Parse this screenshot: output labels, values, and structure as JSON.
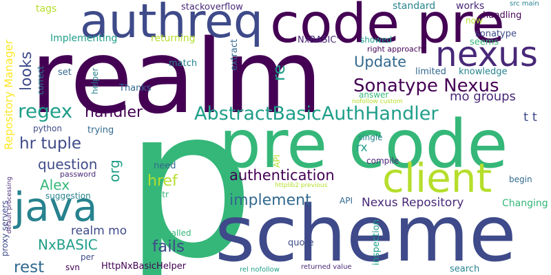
{
  "palette": {
    "background": "#ffffff",
    "dark_purple": "#440154",
    "purple": "#482878",
    "indigo": "#3e4a89",
    "blue": "#31688e",
    "teal": "#26828e",
    "teal_green": "#1f9e89",
    "green": "#35b779",
    "light_green": "#6ece58",
    "yellow_green": "#b5de2b",
    "yellow": "#fde725"
  },
  "words": [
    {
      "id": "p",
      "text": "p"
    },
    {
      "id": "realm",
      "text": "realm"
    },
    {
      "id": "scheme",
      "text": "scheme"
    },
    {
      "id": "pre-code-large",
      "text": "pre code"
    },
    {
      "id": "code-pre",
      "text": "code pre"
    },
    {
      "id": "authreq",
      "text": "authreq"
    },
    {
      "id": "nexus",
      "text": "nexus"
    },
    {
      "id": "client",
      "text": "client"
    },
    {
      "id": "java",
      "text": "java"
    },
    {
      "id": "abstract-basic-auth-handler",
      "text": "AbstractBasicAuthHandler"
    },
    {
      "id": "sonatype-nexus",
      "text": "Sonatype Nexus"
    },
    {
      "id": "regex",
      "text": "regex"
    },
    {
      "id": "authentication",
      "text": "authentication"
    },
    {
      "id": "implement",
      "text": "implement"
    },
    {
      "id": "nexus-repository",
      "text": "Nexus Repository"
    },
    {
      "id": "update",
      "text": "Update"
    },
    {
      "id": "mo-groups",
      "text": "mo groups"
    },
    {
      "id": "handler",
      "text": "handler"
    },
    {
      "id": "hr-tuple",
      "text": "hr tuple"
    },
    {
      "id": "question",
      "text": "question"
    },
    {
      "id": "alex",
      "text": "Alex"
    },
    {
      "id": "nxbasic",
      "text": "NxBASIC"
    },
    {
      "id": "rest",
      "text": "rest"
    },
    {
      "id": "realm-mo",
      "text": "realm mo"
    },
    {
      "id": "fails",
      "text": "fails"
    },
    {
      "id": "href",
      "text": "href"
    },
    {
      "id": "org",
      "text": "org"
    },
    {
      "id": "looks",
      "text": "looks"
    },
    {
      "id": "re",
      "text": "re"
    },
    {
      "id": "rx",
      "text": "rx"
    },
    {
      "id": "repository-manager",
      "text": "Repository Manager"
    },
    {
      "id": "t-t",
      "text": "t t"
    },
    {
      "id": "changing",
      "text": "Changing"
    },
    {
      "id": "tags",
      "text": "tags"
    },
    {
      "id": "stackoverflow",
      "text": "stackoverflow"
    },
    {
      "id": "standard",
      "text": "standard"
    },
    {
      "id": "works",
      "text": "works"
    },
    {
      "id": "src-main",
      "text": "src main"
    },
    {
      "id": "handling",
      "text": "handling"
    },
    {
      "id": "now",
      "text": "now"
    },
    {
      "id": "implementing",
      "text": "Implementing"
    },
    {
      "id": "returning",
      "text": "returning"
    },
    {
      "id": "nxbasic-quote",
      "text": "NxBASIC'"
    },
    {
      "id": "sonatype",
      "text": "sonatype"
    },
    {
      "id": "showed",
      "text": "showed"
    },
    {
      "id": "seems",
      "text": "seems"
    },
    {
      "id": "right-approach",
      "text": "right approach"
    },
    {
      "id": "limited",
      "text": "limited"
    },
    {
      "id": "knowledge",
      "text": "knowledge"
    },
    {
      "id": "extract",
      "text": "extract"
    },
    {
      "id": "match",
      "text": "match"
    },
    {
      "id": "set",
      "text": "set"
    },
    {
      "id": "correct",
      "text": "correct"
    },
    {
      "id": "helper",
      "text": "helper"
    },
    {
      "id": "thanks",
      "text": "Thanks"
    },
    {
      "id": "two-quote",
      "text": "2'"
    },
    {
      "id": "answer",
      "text": "answer"
    },
    {
      "id": "nofollow-custom",
      "text": "nofollow custom"
    },
    {
      "id": "python",
      "text": "python"
    },
    {
      "id": "trying",
      "text": "trying"
    },
    {
      "id": "single",
      "text": "single"
    },
    {
      "id": "compile",
      "text": "compile"
    },
    {
      "id": "api-vertical",
      "text": "API"
    },
    {
      "id": "need",
      "text": "need"
    },
    {
      "id": "password",
      "text": "password"
    },
    {
      "id": "suggestion",
      "text": "suggestion"
    },
    {
      "id": "str",
      "text": "str"
    },
    {
      "id": "httplib2-previous",
      "text": "httplib2 previous"
    },
    {
      "id": "begin",
      "text": "begin"
    },
    {
      "id": "api",
      "text": "API"
    },
    {
      "id": "proxy-servers",
      "text": "proxy servers"
    },
    {
      "id": "default-processing",
      "text": "default processing"
    },
    {
      "id": "called",
      "text": "called"
    },
    {
      "id": "quote",
      "text": "quote"
    },
    {
      "id": "inspection",
      "text": "inspection"
    },
    {
      "id": "per",
      "text": "per"
    },
    {
      "id": "svn",
      "text": "svn"
    },
    {
      "id": "http-nx-basic-helper",
      "text": "HttpNxBasicHelper"
    },
    {
      "id": "rel-nofollow",
      "text": "rel nofollow"
    },
    {
      "id": "returned-value",
      "text": "returned value"
    },
    {
      "id": "search",
      "text": "search"
    }
  ]
}
